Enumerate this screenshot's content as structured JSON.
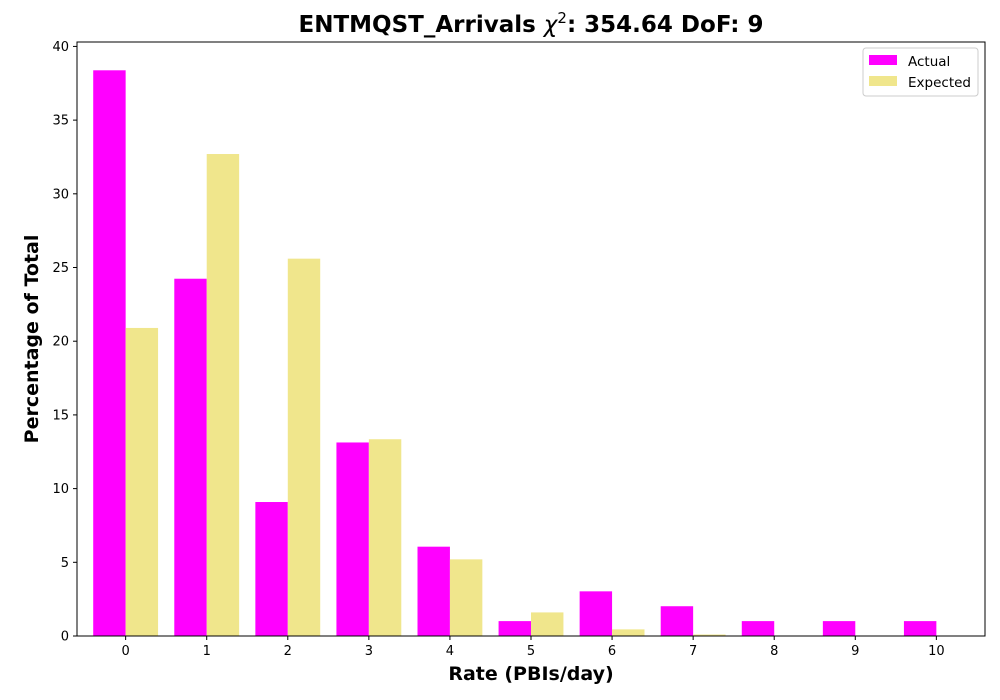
{
  "chart_data": {
    "type": "bar",
    "title": "ENTMQST_Arrivals χ²: 354.64 DoF: 9",
    "title_parts": {
      "prefix": "ENTMQST_Arrivals ",
      "chi": "χ",
      "sup": "2",
      "suffix": ": 354.64 DoF: 9"
    },
    "xlabel": "Rate (PBIs/day)",
    "ylabel": "Percentage of Total",
    "categories": [
      "0",
      "1",
      "2",
      "3",
      "4",
      "5",
      "6",
      "7",
      "8",
      "9",
      "10"
    ],
    "ylim": [
      0,
      40.3
    ],
    "yticks": [
      0,
      5,
      10,
      15,
      20,
      25,
      30,
      35,
      40
    ],
    "legend_position": "top-right",
    "grid": false,
    "series": [
      {
        "name": "Actual",
        "color": "#ff00ff",
        "values": [
          38.38,
          24.24,
          9.09,
          13.13,
          6.06,
          1.01,
          3.03,
          2.02,
          1.01,
          1.01,
          1.01
        ]
      },
      {
        "name": "Expected",
        "color": "#f0e68c",
        "values": [
          20.9,
          32.7,
          25.6,
          13.35,
          5.2,
          1.6,
          0.45,
          0.1,
          0.02,
          0.0,
          0.0
        ]
      }
    ]
  }
}
